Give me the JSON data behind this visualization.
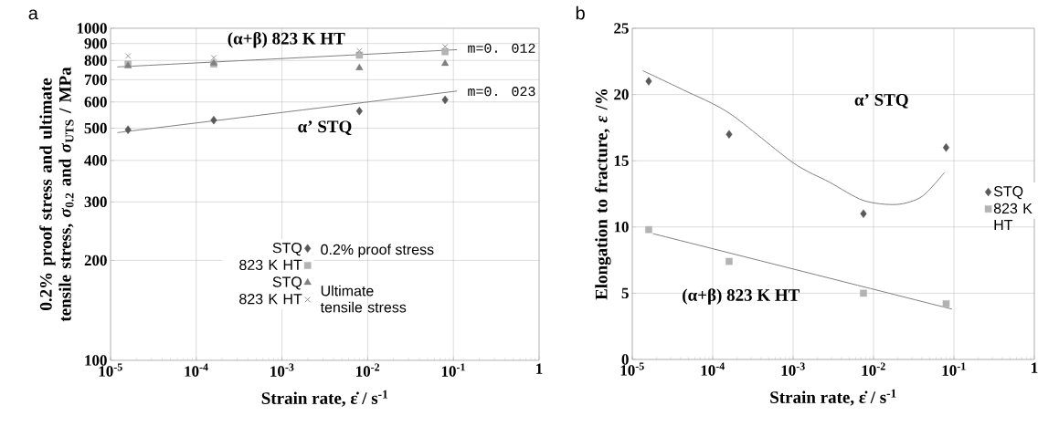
{
  "chart_data": [
    {
      "type": "scatter",
      "title": "a",
      "xlabel": "Strain rate, ε̇ / s$^{-1}$",
      "ylabel": "0.2% proof stress and ultimate tensile stress, *σ*$_{0.2}$ and *σ*$_{UTS}$ / MPa",
      "log": "xy",
      "grid": true,
      "legend": "bottom",
      "xlim": [
        1e-05,
        1
      ],
      "xticks": [
        {
          "value": 1e-05,
          "label": "10$^{-5}$"
        },
        {
          "value": 0.0001,
          "label": "10$^{-4}$"
        },
        {
          "value": 0.001,
          "label": "10$^{-3}$"
        },
        {
          "value": 0.01,
          "label": "10$^{-2}$"
        },
        {
          "value": 0.1,
          "label": "10$^{-1}$"
        },
        1
      ],
      "ylim": [
        100,
        1000
      ],
      "yticks": [
        100,
        200,
        300,
        400,
        500,
        600,
        700,
        800,
        900,
        1000
      ],
      "annotations": [
        "(α+β) 823 K HT",
        "α’ STQ",
        "m=0. 012",
        "m=0. 023",
        "0.2% proof stress",
        "Ultimate tensile stress"
      ],
      "series": [
        {
          "name": "STQ",
          "color": "#595959",
          "marker": "diamond",
          "x": [
            1.6e-05,
            0.00016,
            0.008,
            0.08
          ],
          "values": [
            495,
            529,
            563,
            609
          ]
        },
        {
          "name": "823 K HT",
          "color": "#b3b3b3",
          "marker": "square",
          "x": [
            1.6e-05,
            0.00016,
            0.008,
            0.08
          ],
          "values": [
            780,
            780,
            830,
            850
          ]
        },
        {
          "name": "STQ",
          "color": "#7f7f7f",
          "marker": "triangle",
          "x": [
            1.6e-05,
            0.00016,
            0.008,
            0.08
          ],
          "values": [
            770,
            785,
            760,
            783
          ]
        },
        {
          "name": "823 K HT",
          "color": "#8c8c8c",
          "marker": "cross",
          "x": [
            1.6e-05,
            0.00016,
            0.008,
            0.08
          ],
          "values": [
            825,
            815,
            855,
            880
          ]
        },
        {
          "type": "line",
          "color": "#808080",
          "marker": "none",
          "x": [
            1.2e-05,
            0.11
          ],
          "values": [
            485,
            647
          ]
        },
        {
          "type": "line",
          "color": "#808080",
          "marker": "none",
          "x": [
            1.2e-05,
            0.11
          ],
          "values": [
            765,
            862
          ]
        }
      ]
    },
    {
      "type": "scatter",
      "title": "b",
      "xlabel": "Strain rate, ε̇ / s$^{-1}$",
      "ylabel": "Elongation to fracture, *ε* /%",
      "log": "x",
      "grid": true,
      "legend": "right",
      "xlim": [
        1e-05,
        1
      ],
      "xticks": [
        {
          "value": 1e-05,
          "label": "10$^{-5}$"
        },
        {
          "value": 0.0001,
          "label": "10$^{-4}$"
        },
        {
          "value": 0.001,
          "label": "10$^{-3}$"
        },
        {
          "value": 0.01,
          "label": "10$^{-2}$"
        },
        {
          "value": 0.1,
          "label": "10$^{-1}$"
        },
        1
      ],
      "ylim": [
        0,
        25
      ],
      "yticks": [
        0,
        5,
        10,
        15,
        20,
        25
      ],
      "annotations": [
        "α’ STQ",
        "(α+β) 823 K HT"
      ],
      "series": [
        {
          "name": "STQ",
          "color": "#595959",
          "marker": "diamond",
          "x": [
            1.6e-05,
            0.00016,
            0.0075,
            0.08
          ],
          "values": [
            21,
            17,
            11,
            16
          ]
        },
        {
          "name": "823 K HT",
          "color": "#b3b3b3",
          "marker": "square",
          "x": [
            1.6e-05,
            0.00016,
            0.0075,
            0.08
          ],
          "values": [
            9.8,
            7.4,
            5.0,
            4.2
          ]
        },
        {
          "type": "line",
          "color": "#808080",
          "marker": "none",
          "x": [
            1.35e-05,
            4.3e-05,
            0.00016,
            0.001,
            0.0028,
            0.0075,
            0.0195,
            0.04,
            0.076
          ],
          "values": [
            21.8,
            20.35,
            18.6,
            14.85,
            13.4,
            12.0,
            11.7,
            12.3,
            14.1
          ]
        },
        {
          "type": "line",
          "color": "#808080",
          "marker": "none",
          "x": [
            1.8e-05,
            0.095
          ],
          "values": [
            9.5,
            3.8
          ]
        }
      ]
    }
  ]
}
